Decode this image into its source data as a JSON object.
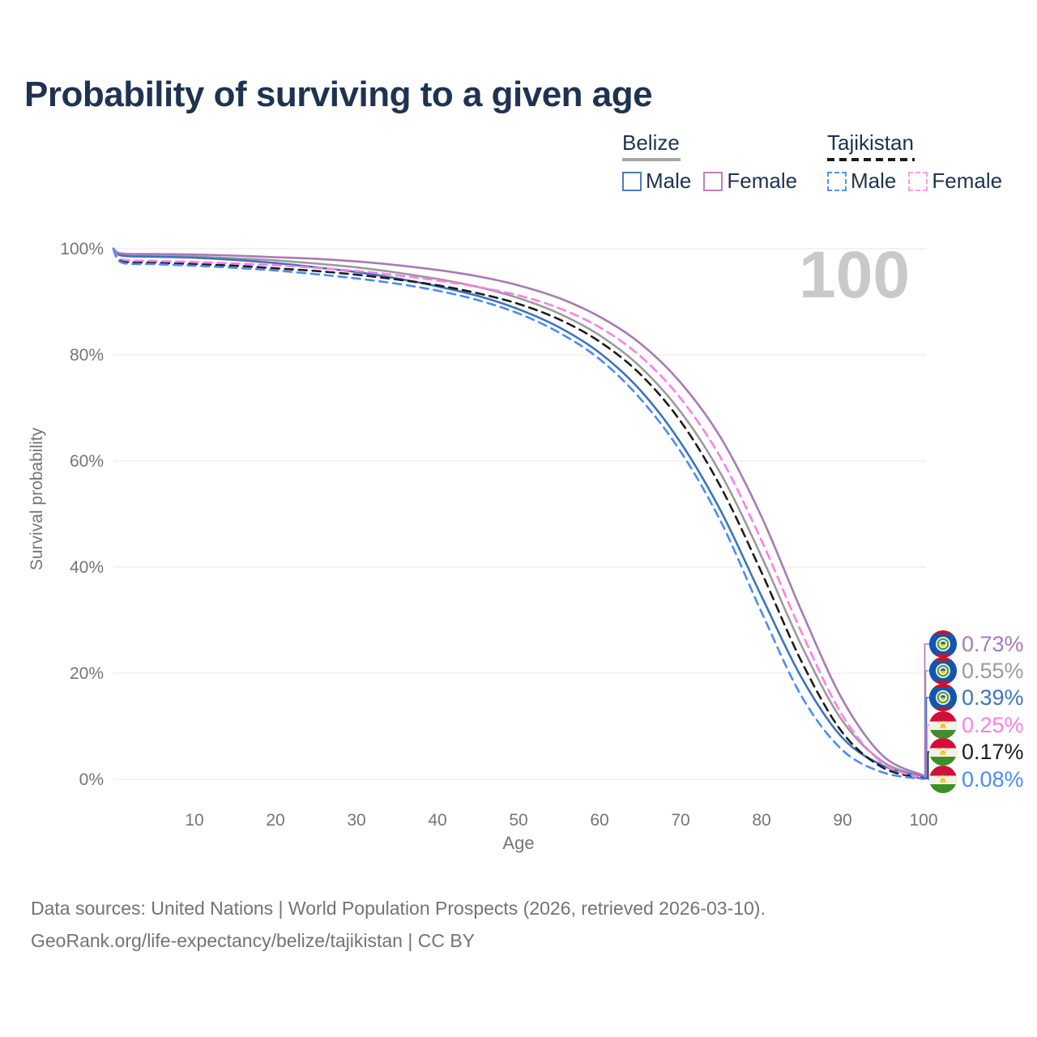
{
  "title": "Probability of surviving to a given age",
  "age_counter": "100",
  "legend": {
    "groups": [
      {
        "country": "Belize",
        "line_style": "solid",
        "underline_color": "#a6a6a6",
        "items": [
          {
            "label": "Male",
            "color": "#4a7cc2"
          },
          {
            "label": "Female",
            "color": "#be7fc0"
          }
        ]
      },
      {
        "country": "Tajikistan",
        "line_style": "dashed",
        "underline_color": "#1a1a1a",
        "items": [
          {
            "label": "Male",
            "color": "#4d94ff"
          },
          {
            "label": "Female",
            "color": "#ff9ce8"
          }
        ]
      }
    ]
  },
  "axes": {
    "x": {
      "label": "Age",
      "tick_values": [
        10,
        20,
        30,
        40,
        50,
        60,
        70,
        80,
        90,
        100
      ],
      "min": 0,
      "max": 100
    },
    "y": {
      "label": "Survival probability",
      "tick_values": [
        0,
        20,
        40,
        60,
        80,
        100
      ],
      "tick_labels": [
        "0%",
        "20%",
        "40%",
        "60%",
        "80%",
        "100%"
      ]
    }
  },
  "end_labels": [
    {
      "value": "0.73%",
      "color": "#a87ab5",
      "flag": "belize-flag-icon",
      "series": "Belize Female"
    },
    {
      "value": "0.55%",
      "color": "#9b9b9b",
      "flag": "belize-flag-icon",
      "series": "Belize (both sexes)"
    },
    {
      "value": "0.39%",
      "color": "#3d74bd",
      "flag": "belize-flag-icon",
      "series": "Belize Male"
    },
    {
      "value": "0.25%",
      "color": "#ff7de9",
      "flag": "tajikistan-flag-icon",
      "series": "Tajikistan Female"
    },
    {
      "value": "0.17%",
      "color": "#1c1c1c",
      "flag": "tajikistan-flag-icon",
      "series": "Tajikistan (both sexes)"
    },
    {
      "value": "0.08%",
      "color": "#4b8bf4",
      "flag": "tajikistan-flag-icon",
      "series": "Tajikistan Male"
    }
  ],
  "source": {
    "line1": "Data sources: United Nations | World Population Prospects (2026, retrieved 2026-03-10).",
    "line2": "GeoRank.org/life-expectancy/belize/tajikistan | CC BY"
  },
  "chart_data": {
    "type": "line",
    "title": "Probability of surviving to a given age",
    "xlabel": "Age",
    "ylabel": "Survival probability",
    "xlim": [
      0,
      100
    ],
    "ylim": [
      0,
      100
    ],
    "grid": "horizontal",
    "legend_position": "top-right",
    "x": [
      0,
      1,
      5,
      10,
      15,
      20,
      25,
      30,
      35,
      40,
      45,
      50,
      55,
      60,
      65,
      70,
      75,
      80,
      85,
      90,
      95,
      100
    ],
    "series": [
      {
        "name": "Belize (both sexes)",
        "country": "Belize",
        "sex": "all",
        "color": "#9b9b9b",
        "dash": "solid",
        "values": [
          100,
          98.9,
          98.7,
          98.5,
          98.2,
          97.8,
          97.2,
          96.5,
          95.5,
          94.3,
          92.8,
          90.7,
          87.8,
          83.7,
          77.8,
          69.3,
          57.5,
          42.0,
          25.0,
          11.0,
          3.3,
          0.55
        ]
      },
      {
        "name": "Belize Male",
        "country": "Belize",
        "sex": "male",
        "color": "#3d74bd",
        "dash": "solid",
        "values": [
          100,
          98.7,
          98.5,
          98.3,
          97.9,
          97.3,
          96.5,
          95.6,
          94.4,
          92.9,
          91.1,
          88.6,
          85.2,
          80.4,
          73.4,
          63.5,
          50.5,
          34.5,
          19.0,
          7.8,
          2.6,
          0.39
        ]
      },
      {
        "name": "Belize Female",
        "country": "Belize",
        "sex": "female",
        "color": "#a87ab5",
        "dash": "solid",
        "values": [
          100,
          99.1,
          99.0,
          98.9,
          98.7,
          98.4,
          98.1,
          97.6,
          96.9,
          96.0,
          94.8,
          93.1,
          90.7,
          87.2,
          82.2,
          74.8,
          64.3,
          49.5,
          31.5,
          15.0,
          4.4,
          0.73
        ]
      },
      {
        "name": "Tajikistan (both sexes)",
        "country": "Tajikistan",
        "sex": "all",
        "color": "#1c1c1c",
        "dash": "dashed",
        "values": [
          100,
          97.7,
          97.4,
          97.1,
          96.8,
          96.3,
          95.8,
          95.1,
          94.2,
          93.1,
          91.6,
          89.6,
          86.7,
          82.5,
          76.4,
          67.5,
          55.0,
          39.0,
          22.0,
          8.8,
          2.2,
          0.17
        ]
      },
      {
        "name": "Tajikistan Female",
        "country": "Tajikistan",
        "sex": "female",
        "color": "#ff7de9",
        "dash": "dashed",
        "values": [
          100,
          98.0,
          97.7,
          97.5,
          97.2,
          96.9,
          96.4,
          95.8,
          95.0,
          94.0,
          92.8,
          91.2,
          88.8,
          85.2,
          79.8,
          71.8,
          60.5,
          45.0,
          27.5,
          12.0,
          3.0,
          0.25
        ]
      },
      {
        "name": "Tajikistan Male",
        "country": "Tajikistan",
        "sex": "male",
        "color": "#4b8bf4",
        "dash": "dashed",
        "values": [
          100,
          97.4,
          97.1,
          96.8,
          96.4,
          95.9,
          95.2,
          94.4,
          93.4,
          92.1,
          90.3,
          87.8,
          84.2,
          79.2,
          71.8,
          61.8,
          48.5,
          31.5,
          15.5,
          5.5,
          1.3,
          0.08
        ]
      }
    ],
    "end_values_pct": {
      "Belize Female": 0.73,
      "Belize (both sexes)": 0.55,
      "Belize Male": 0.39,
      "Tajikistan Female": 0.25,
      "Tajikistan (both sexes)": 0.17,
      "Tajikistan Male": 0.08
    }
  }
}
